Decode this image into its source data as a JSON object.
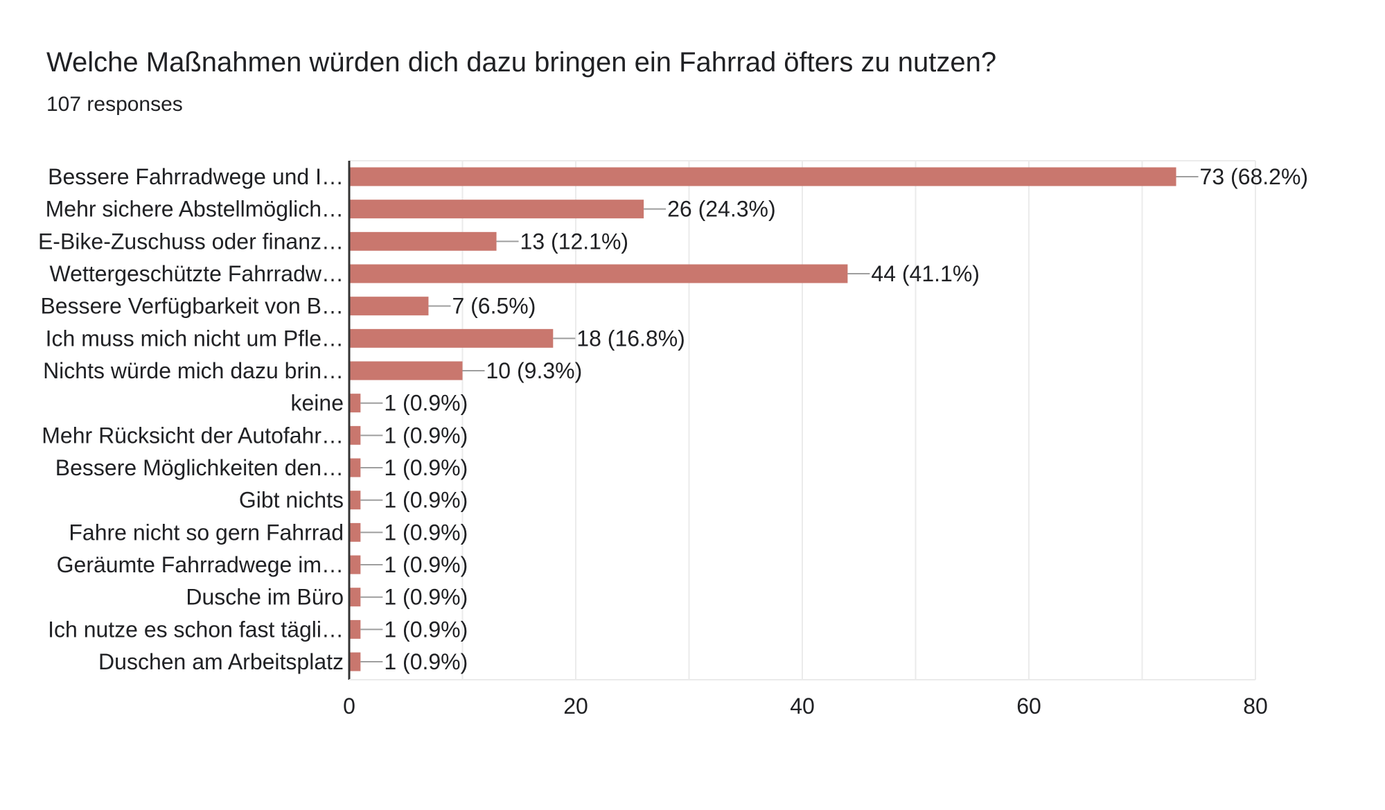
{
  "title": "Welche Maßnahmen würden dich dazu bringen ein Fahrrad öfters zu nutzen?",
  "subtitle": "107 responses",
  "colors": {
    "bar": "#c9776e",
    "grid": "#ebebeb",
    "axis": "#333333",
    "leader": "#9e9e9e",
    "text": "#202124"
  },
  "chart_data": {
    "type": "bar",
    "orientation": "horizontal",
    "categories": [
      "Bessere Fahrradwege und I…",
      "Mehr sichere Abstellmöglich…",
      "E-Bike-Zuschuss oder finanz…",
      "Wettergeschützte Fahrradw…",
      "Bessere Verfügbarkeit von B…",
      "Ich muss mich nicht um Pfle…",
      "Nichts würde mich dazu brin…",
      "keine",
      "Mehr Rücksicht der Autofahr…",
      "Bessere Möglichkeiten den…",
      "Gibt nichts",
      "Fahre nicht so gern Fahrrad",
      "Geräumte Fahrradwege im…",
      "Dusche im Büro",
      "Ich nutze es schon fast tägli…",
      "Duschen am Arbeitsplatz"
    ],
    "values": [
      73,
      26,
      13,
      44,
      7,
      18,
      10,
      1,
      1,
      1,
      1,
      1,
      1,
      1,
      1,
      1
    ],
    "data_labels": [
      "73 (68.2%)",
      "26 (24.3%)",
      "13 (12.1%)",
      "44 (41.1%)",
      "7 (6.5%)",
      "18 (16.8%)",
      "10 (9.3%)",
      "1 (0.9%)",
      "1 (0.9%)",
      "1 (0.9%)",
      "1 (0.9%)",
      "1 (0.9%)",
      "1 (0.9%)",
      "1 (0.9%)",
      "1 (0.9%)",
      "1 (0.9%)"
    ],
    "xlim": [
      0,
      80
    ],
    "major_ticks": [
      0,
      20,
      40,
      60,
      80
    ],
    "minor_grid_step": 10,
    "grid": true,
    "legend": "none"
  }
}
